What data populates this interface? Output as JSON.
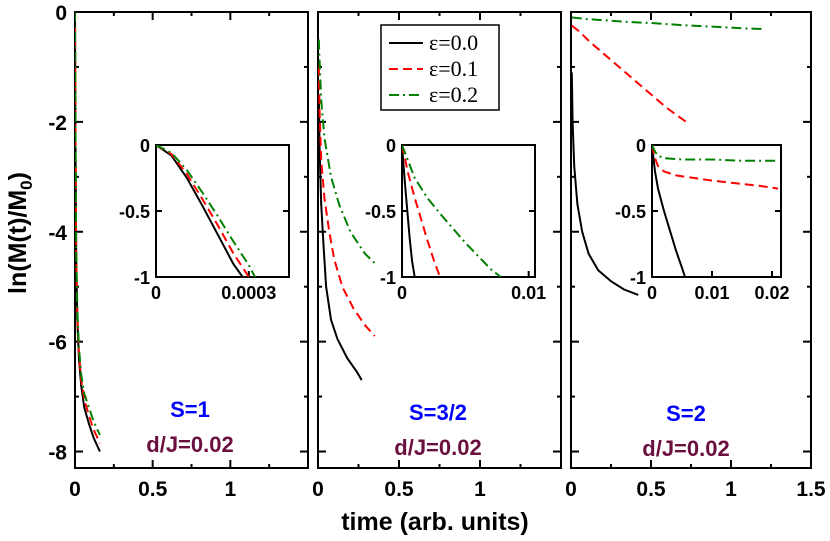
{
  "colors": {
    "series_0": "#000000",
    "series_1": "#ff0000",
    "series_2": "#008000",
    "spin_label": "#0000ff",
    "dj_label": "#6b0f3f"
  },
  "labels": {
    "xlabel": "time (arb. units)",
    "ylabel_main": "ln(M(t)/M",
    "ylabel_sub": "0",
    "ylabel_close": ")"
  },
  "chart_data": {
    "type": "line",
    "ylabel": "ln(M(t)/M0)",
    "xlabel": "time (arb. units)",
    "legend": {
      "placement": "top of panel 2",
      "entries": [
        {
          "label": "ε=0.0",
          "style": "solid",
          "color": "#000000"
        },
        {
          "label": "ε=0.1",
          "style": "dashed",
          "color": "#ff0000"
        },
        {
          "label": "ε=0.2",
          "style": "dash-dot",
          "color": "#008000"
        }
      ]
    },
    "panels": [
      {
        "spin_label": "S=1",
        "param_label": "d/J=0.02",
        "xlim": [
          0,
          1.5
        ],
        "ylim": [
          -8.3,
          0
        ],
        "x_ticks": [
          0,
          0.5,
          1
        ],
        "x_tick_labels": [
          "0",
          "0.5",
          "1"
        ],
        "y_ticks": [
          0,
          -2,
          -4,
          -6,
          -8
        ],
        "y_tick_labels": [
          "0",
          "-2",
          "-4",
          "-6",
          "-8"
        ],
        "series": [
          {
            "name": "ε=0.0",
            "x": [
              0,
              0.003,
              0.008,
              0.015,
              0.025,
              0.04,
              0.06,
              0.09,
              0.12,
              0.16
            ],
            "y": [
              0,
              -2.5,
              -4.5,
              -5.6,
              -6.3,
              -6.8,
              -7.2,
              -7.5,
              -7.75,
              -8.0
            ]
          },
          {
            "name": "ε=0.1",
            "x": [
              0,
              0.003,
              0.008,
              0.015,
              0.025,
              0.04,
              0.06,
              0.09,
              0.12,
              0.16
            ],
            "y": [
              0,
              -2.4,
              -4.4,
              -5.5,
              -6.2,
              -6.7,
              -7.05,
              -7.35,
              -7.6,
              -7.85
            ]
          },
          {
            "name": "ε=0.2",
            "x": [
              0,
              0.003,
              0.008,
              0.015,
              0.025,
              0.04,
              0.06,
              0.09,
              0.12,
              0.16
            ],
            "y": [
              0,
              -2.3,
              -4.3,
              -5.4,
              -6.1,
              -6.6,
              -6.95,
              -7.2,
              -7.45,
              -7.7
            ]
          }
        ],
        "inset": {
          "xlim": [
            0,
            0.00043
          ],
          "ylim": [
            -1,
            0
          ],
          "x_ticks": [
            0,
            0.0003
          ],
          "x_tick_labels": [
            "0",
            "0.0003"
          ],
          "y_ticks": [
            0,
            -0.5,
            -1
          ],
          "y_tick_labels": [
            "0",
            "-0.5",
            "-1"
          ],
          "series": [
            {
              "name": "ε=0.0",
              "x": [
                0,
                5e-05,
                0.0001,
                0.00015,
                0.0002,
                0.00025,
                0.00028
              ],
              "y": [
                0,
                -0.08,
                -0.25,
                -0.46,
                -0.68,
                -0.9,
                -1.0
              ]
            },
            {
              "name": "ε=0.1",
              "x": [
                0,
                5e-05,
                0.0001,
                0.00015,
                0.0002,
                0.00025,
                0.0003
              ],
              "y": [
                0,
                -0.07,
                -0.22,
                -0.41,
                -0.61,
                -0.82,
                -1.0
              ]
            },
            {
              "name": "ε=0.2",
              "x": [
                0,
                5e-05,
                0.0001,
                0.00015,
                0.0002,
                0.00025,
                0.0003,
                0.00032
              ],
              "y": [
                0,
                -0.06,
                -0.19,
                -0.36,
                -0.54,
                -0.73,
                -0.91,
                -1.0
              ]
            }
          ]
        }
      },
      {
        "spin_label": "S=3/2",
        "param_label": "d/J=0.02",
        "xlim": [
          0,
          1.5
        ],
        "ylim": [
          -8.3,
          0
        ],
        "x_ticks": [
          0,
          0.5,
          1
        ],
        "x_tick_labels": [
          "0",
          "0.5",
          "1"
        ],
        "series": [
          {
            "name": "ε=0.0",
            "x": [
              0.005,
              0.01,
              0.02,
              0.035,
              0.05,
              0.08,
              0.12,
              0.18,
              0.24,
              0.27
            ],
            "y": [
              -1.5,
              -2.5,
              -3.5,
              -4.3,
              -5.0,
              -5.6,
              -5.95,
              -6.3,
              -6.55,
              -6.7
            ]
          },
          {
            "name": "ε=0.1",
            "x": [
              0.005,
              0.01,
              0.02,
              0.04,
              0.07,
              0.1,
              0.15,
              0.22,
              0.29,
              0.35
            ],
            "y": [
              -1.0,
              -1.8,
              -2.7,
              -3.4,
              -4.0,
              -4.5,
              -5.0,
              -5.4,
              -5.7,
              -5.9
            ]
          },
          {
            "name": "ε=0.2",
            "x": [
              0.005,
              0.01,
              0.02,
              0.04,
              0.08,
              0.13,
              0.2,
              0.29,
              0.36
            ],
            "y": [
              -0.5,
              -0.9,
              -1.6,
              -2.3,
              -3.0,
              -3.5,
              -4.0,
              -4.4,
              -4.6
            ]
          }
        ],
        "inset": {
          "xlim": [
            0,
            0.0105
          ],
          "ylim": [
            -1,
            0
          ],
          "x_ticks": [
            0,
            0.01
          ],
          "x_tick_labels": [
            "0",
            "0.01"
          ],
          "y_ticks": [
            0,
            -0.5,
            -1
          ],
          "y_tick_labels": [
            "0",
            "-0.5",
            "-1"
          ],
          "series": [
            {
              "name": "ε=0.0",
              "x": [
                0,
                0.0002,
                0.0004,
                0.0006,
                0.0008,
                0.001
              ],
              "y": [
                0,
                -0.25,
                -0.48,
                -0.7,
                -0.88,
                -1.0
              ]
            },
            {
              "name": "ε=0.1",
              "x": [
                0,
                0.0005,
                0.001,
                0.0015,
                0.002,
                0.0025,
                0.003
              ],
              "y": [
                0,
                -0.22,
                -0.4,
                -0.56,
                -0.72,
                -0.87,
                -1.0
              ]
            },
            {
              "name": "ε=0.2",
              "x": [
                0,
                0.001,
                0.002,
                0.003,
                0.004,
                0.005,
                0.006,
                0.007,
                0.0078
              ],
              "y": [
                0,
                -0.25,
                -0.4,
                -0.52,
                -0.63,
                -0.74,
                -0.84,
                -0.94,
                -1.0
              ]
            }
          ]
        }
      },
      {
        "spin_label": "S=2",
        "param_label": "d/J=0.02",
        "xlim": [
          0,
          1.5
        ],
        "ylim": [
          -8.3,
          0
        ],
        "x_ticks": [
          0,
          0.5,
          1,
          1.5
        ],
        "x_tick_labels": [
          "0",
          "0.5",
          "1",
          "1.5"
        ],
        "series": [
          {
            "name": "ε=0.0",
            "x": [
              0.005,
              0.01,
              0.02,
              0.04,
              0.07,
              0.11,
              0.17,
              0.25,
              0.33,
              0.42
            ],
            "y": [
              -1.1,
              -2.0,
              -2.8,
              -3.5,
              -4.0,
              -4.4,
              -4.7,
              -4.9,
              -5.05,
              -5.15
            ]
          },
          {
            "name": "ε=0.1",
            "x": [
              0.005,
              0.05,
              0.12,
              0.2,
              0.3,
              0.4,
              0.5,
              0.6,
              0.72
            ],
            "y": [
              -0.25,
              -0.35,
              -0.55,
              -0.75,
              -1.0,
              -1.25,
              -1.5,
              -1.75,
              -2.0
            ]
          },
          {
            "name": "ε=0.2",
            "x": [
              0.005,
              0.1,
              0.2,
              0.35,
              0.5,
              0.7,
              0.9,
              1.1,
              1.2
            ],
            "y": [
              -0.1,
              -0.13,
              -0.15,
              -0.18,
              -0.2,
              -0.24,
              -0.27,
              -0.3,
              -0.31
            ]
          }
        ],
        "inset": {
          "xlim": [
            0,
            0.0215
          ],
          "ylim": [
            -1,
            0
          ],
          "x_ticks": [
            0,
            0.01,
            0.02
          ],
          "x_tick_labels": [
            "0",
            "0.01",
            "0.02"
          ],
          "y_ticks": [
            0,
            -0.5,
            -1
          ],
          "y_tick_labels": [
            "0",
            "-0.5",
            "-1"
          ],
          "series": [
            {
              "name": "ε=0.0",
              "x": [
                0,
                0.0005,
                0.001,
                0.002,
                0.003,
                0.004,
                0.005,
                0.0055
              ],
              "y": [
                0,
                -0.2,
                -0.33,
                -0.5,
                -0.65,
                -0.8,
                -0.93,
                -1.0
              ]
            },
            {
              "name": "ε=0.1",
              "x": [
                0,
                0.0005,
                0.001,
                0.002,
                0.004,
                0.007,
                0.01,
                0.014,
                0.018,
                0.021
              ],
              "y": [
                0,
                -0.1,
                -0.16,
                -0.2,
                -0.23,
                -0.25,
                -0.27,
                -0.29,
                -0.31,
                -0.33
              ]
            },
            {
              "name": "ε=0.2",
              "x": [
                0,
                0.0005,
                0.001,
                0.002,
                0.005,
                0.01,
                0.015,
                0.021
              ],
              "y": [
                0,
                -0.05,
                -0.08,
                -0.1,
                -0.11,
                -0.11,
                -0.12,
                -0.12
              ]
            }
          ]
        }
      }
    ]
  }
}
